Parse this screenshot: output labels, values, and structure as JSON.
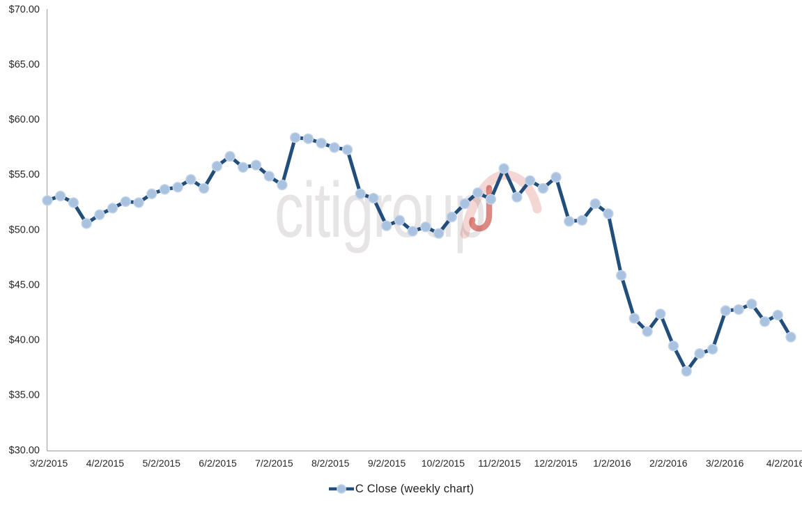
{
  "chart_data": {
    "type": "line",
    "title": "",
    "series": [
      {
        "name": "C Close (weekly chart)",
        "values": [
          52.7,
          53.1,
          52.5,
          50.6,
          51.4,
          52.0,
          52.6,
          52.5,
          53.3,
          53.7,
          53.9,
          54.6,
          53.8,
          55.8,
          56.7,
          55.7,
          55.9,
          54.9,
          54.1,
          58.4,
          58.3,
          57.9,
          57.5,
          57.3,
          53.3,
          52.9,
          50.4,
          50.9,
          49.9,
          50.3,
          49.7,
          51.2,
          52.4,
          53.4,
          52.8,
          55.6,
          53.0,
          54.5,
          53.8,
          54.8,
          50.8,
          50.9,
          52.4,
          51.5,
          45.9,
          42.0,
          40.8,
          42.4,
          39.5,
          37.2,
          38.8,
          39.2,
          42.7,
          42.8,
          43.3,
          41.7,
          42.3,
          40.3
        ]
      }
    ],
    "x_tick_labels": [
      "3/2/2015",
      "4/2/2015",
      "5/2/2015",
      "6/2/2015",
      "7/2/2015",
      "8/2/2015",
      "9/2/2015",
      "10/2/2015",
      "11/2/2015",
      "12/2/2015",
      "1/2/2016",
      "2/2/2016",
      "3/2/2016",
      "4/2/2016"
    ],
    "y_tick_labels": [
      "$30.00",
      "$35.00",
      "$40.00",
      "$45.00",
      "$50.00",
      "$55.00",
      "$60.00",
      "$65.00",
      "$70.00"
    ],
    "ylim": [
      30,
      70
    ],
    "y_step": 5,
    "grid": "off",
    "legend_position": "bottom",
    "colors": {
      "line": "#214E7B",
      "marker_fill": "#A9C2DF",
      "marker_stroke": "#C6D5E9",
      "axis": "#A6A6A6",
      "tick_label": "#262626"
    }
  },
  "legend": {
    "label": "C Close (weekly chart)"
  },
  "watermark": {
    "text": "citigroup",
    "text_color": "#E6E4E4",
    "umbrella_canopy_color": "rgba(205,75,62,0.22)",
    "umbrella_handle_color": "rgba(198,58,48,0.60)"
  }
}
